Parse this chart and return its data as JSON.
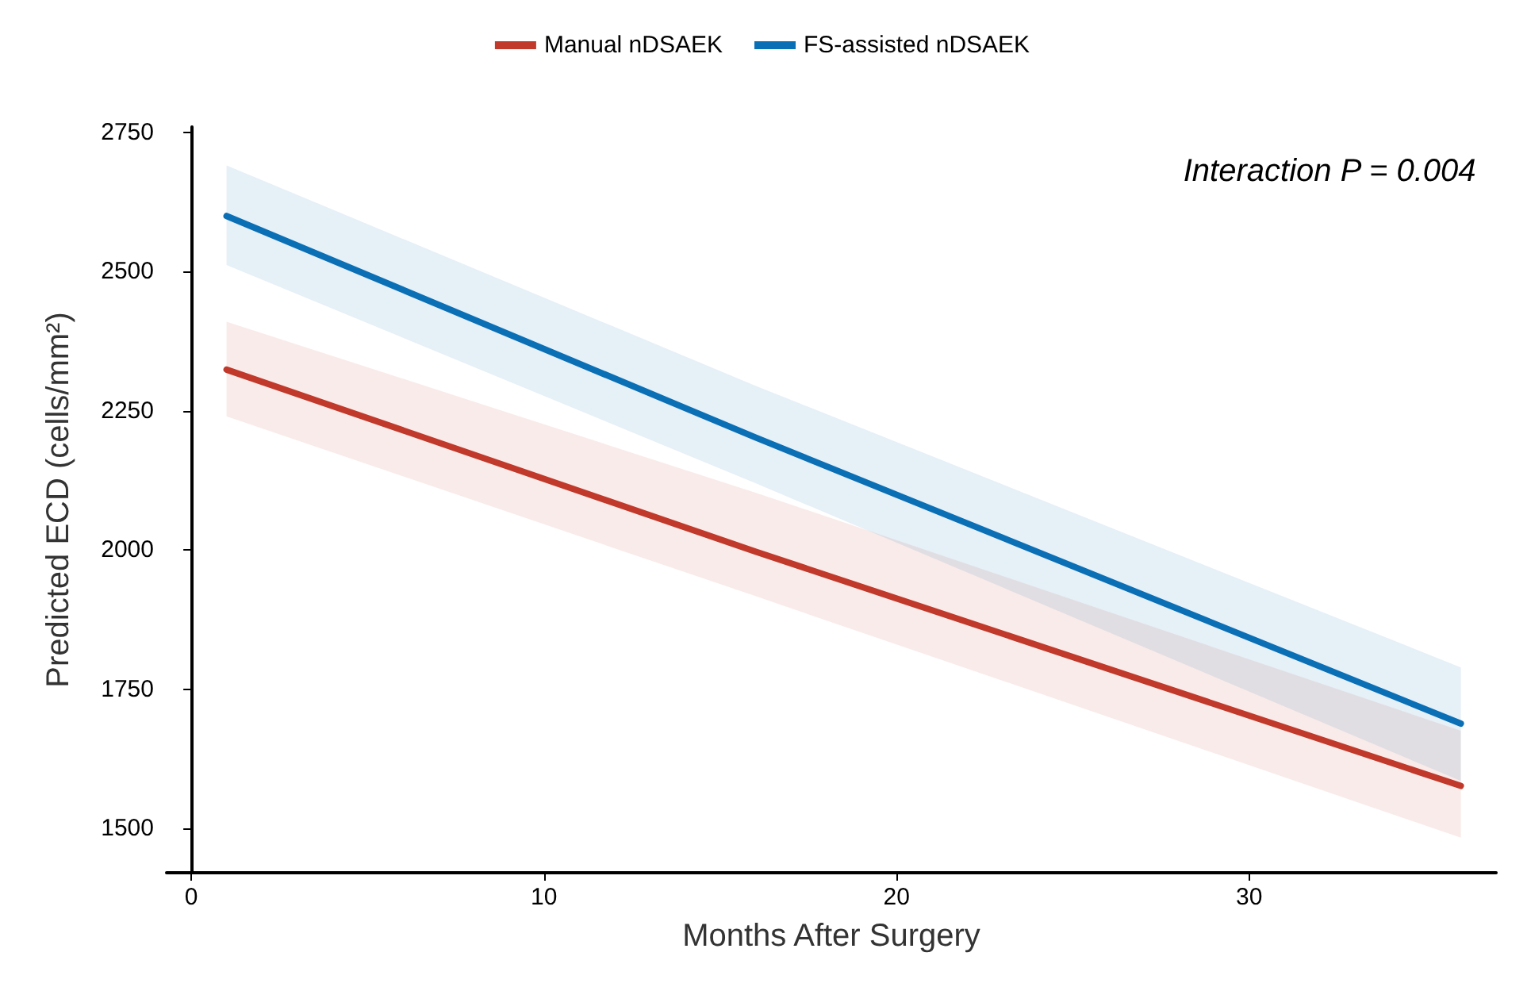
{
  "chart_data": {
    "type": "line",
    "xlabel": "Months After Surgery",
    "ylabel": "Predicted ECD (cells/mm²)",
    "annotations": [
      "Interaction P = 0.004"
    ],
    "x": [
      1,
      16,
      36
    ],
    "series": [
      {
        "name": "Manual nDSAEK",
        "color": "#c0392b",
        "values": [
          2324,
          1997,
          1576
        ],
        "lower": [
          2240,
          1917,
          1483
        ],
        "upper": [
          2410,
          2103,
          1675
        ]
      },
      {
        "name": "FS-assisted nDSAEK",
        "color": "#0a6fb5",
        "values": [
          2600,
          2202,
          1688
        ],
        "lower": [
          2512,
          2120,
          1585
        ],
        "upper": [
          2691,
          2295,
          1789
        ]
      }
    ],
    "xlim": [
      -0.7,
      37
    ],
    "ylim": [
      1420,
      2760
    ],
    "xticks": [
      0,
      10,
      20,
      30
    ],
    "yticks": [
      1500,
      1750,
      2000,
      2250,
      2500,
      2750
    ],
    "grid": false,
    "legend": "top",
    "line_style": "solid",
    "marker": "none"
  }
}
